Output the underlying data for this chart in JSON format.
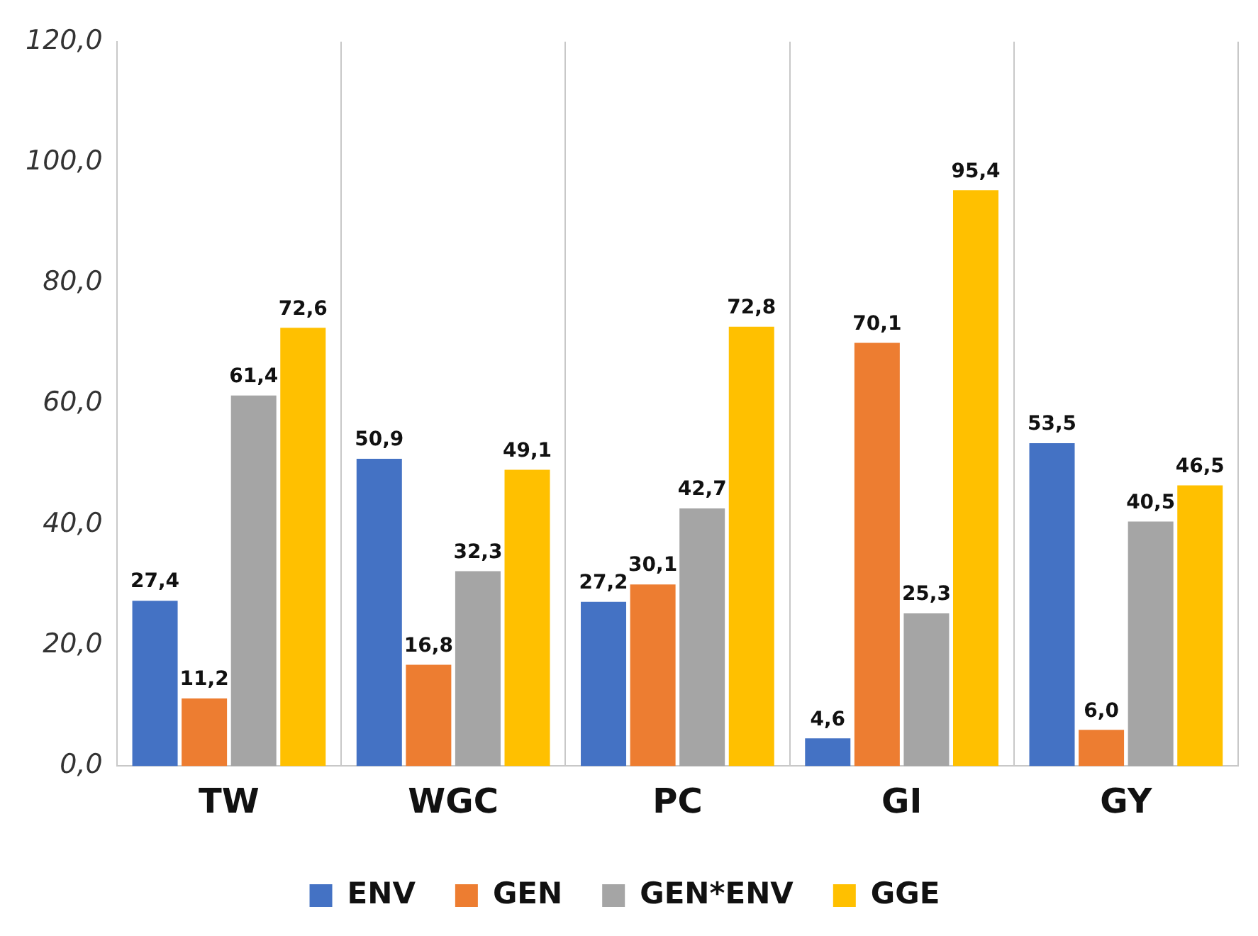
{
  "chart_data": {
    "type": "bar",
    "categories": [
      "TW",
      "WGC",
      "PC",
      "GI",
      "GY"
    ],
    "series": [
      {
        "name": "ENV",
        "color": "#4472c4",
        "values": [
          27.4,
          50.9,
          27.2,
          4.6,
          53.5
        ],
        "value_labels": [
          "27,4",
          "50,9",
          "27,2",
          "4,6",
          "53,5"
        ]
      },
      {
        "name": "GEN",
        "color": "#ed7d31",
        "values": [
          11.2,
          16.8,
          30.1,
          70.1,
          6.0
        ],
        "value_labels": [
          "11,2",
          "16,8",
          "30,1",
          "70,1",
          "6,0"
        ]
      },
      {
        "name": "GEN*ENV",
        "color": "#a5a5a5",
        "values": [
          61.4,
          32.3,
          42.7,
          25.3,
          40.5
        ],
        "value_labels": [
          "61,4",
          "32,3",
          "42,7",
          "25,3",
          "40,5"
        ]
      },
      {
        "name": "GGE",
        "color": "#ffc000",
        "values": [
          72.6,
          49.1,
          72.8,
          95.4,
          46.5
        ],
        "value_labels": [
          "72,6",
          "49,1",
          "72,8",
          "95,4",
          "46,5"
        ]
      }
    ],
    "ylim": [
      0,
      120
    ],
    "yticks": [
      {
        "value": 0,
        "label": "0,0"
      },
      {
        "value": 20,
        "label": "20,0"
      },
      {
        "value": 40,
        "label": "40,0"
      },
      {
        "value": 60,
        "label": "60,0"
      },
      {
        "value": 80,
        "label": "80,0"
      },
      {
        "value": 100,
        "label": "100,0"
      },
      {
        "value": 120,
        "label": "120,0"
      }
    ],
    "grid": "x",
    "legend": "bottom"
  }
}
